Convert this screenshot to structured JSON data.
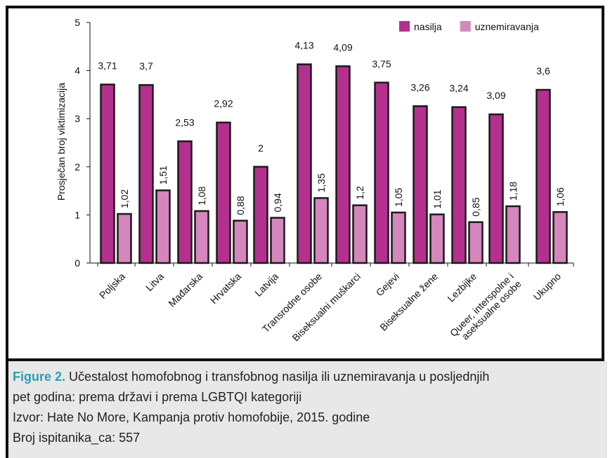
{
  "chart_data": {
    "type": "bar",
    "y_label": "Prosječan broj viktimizacija",
    "categories": [
      "Poljska",
      "Litva",
      "Mađarska",
      "Hrvatska",
      "Latvija",
      "Transrodne osobe",
      "Biseksualni muškarci",
      "Gejevi",
      "Biseksualne žene",
      "Lezbijke",
      "Queer, interspolne i\naseksualne osobe",
      "Ukupno"
    ],
    "series": [
      {
        "name": "nasilja",
        "color": "#b4308e",
        "values": [
          3.71,
          3.7,
          2.53,
          2.92,
          2,
          4.13,
          4.09,
          3.75,
          3.26,
          3.24,
          3.09,
          3.6
        ],
        "value_labels": [
          "3,71",
          "3,7",
          "2,53",
          "2,92",
          "2",
          "4,13",
          "4,09",
          "3,75",
          "3,26",
          "3,24",
          "3,09",
          "3,6"
        ]
      },
      {
        "name": "uznemiravanja",
        "color": "#d486bd",
        "values": [
          1.02,
          1.51,
          1.08,
          0.88,
          0.94,
          1.35,
          1.2,
          1.05,
          1.01,
          0.85,
          1.18,
          1.06
        ],
        "value_labels": [
          "1,02",
          "1,51",
          "1,08",
          "0,88",
          "0,94",
          "1,35",
          "1,2",
          "1,05",
          "1,01",
          "0,85",
          "1,18",
          "1,06"
        ]
      }
    ],
    "ylim": [
      0,
      5
    ],
    "yticks": [
      0,
      1,
      2,
      3,
      4,
      5
    ],
    "legend": "top-right"
  },
  "caption": {
    "label": "Figure 2.",
    "lines": [
      " Učestalost homofobnog i transfobnog nasilja ili uznemiravanja u posljednjih",
      "pet godina: prema državi i prema LGBTQI kategoriji",
      "Izvor: Hate No More, Kampanja protiv homofobije, 2015. godine",
      "Broj ispitanika_ca: 557"
    ]
  }
}
